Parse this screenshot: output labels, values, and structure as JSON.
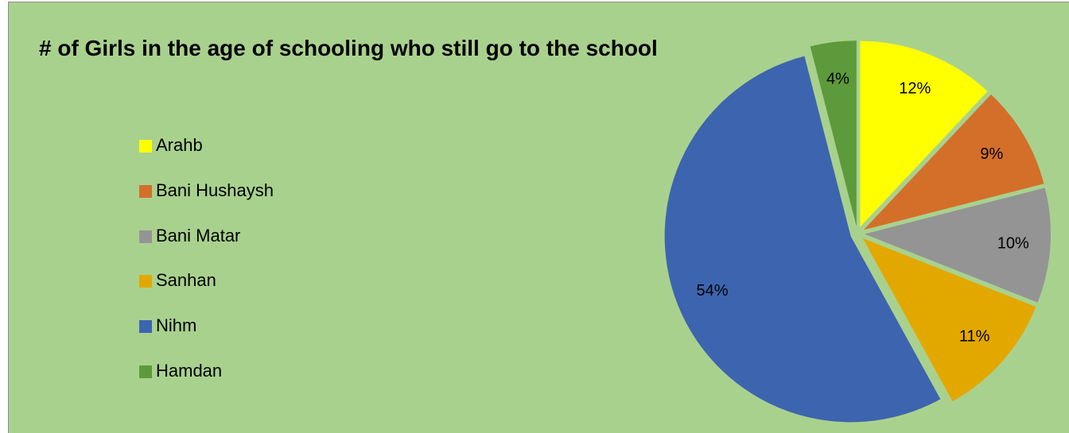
{
  "chart_data": {
    "type": "pie",
    "title": "# of Girls in the age of schooling who still go to the school",
    "legend_position": "left",
    "background": "#a9d18e",
    "slices": [
      {
        "name": "Arahb",
        "value": 12,
        "label": "12%",
        "color": "#ffff00"
      },
      {
        "name": "Bani Hushaysh",
        "value": 9,
        "label": "9%",
        "color": "#d46f2a"
      },
      {
        "name": "Bani Matar",
        "value": 10,
        "label": "10%",
        "color": "#949494"
      },
      {
        "name": "Sanhan",
        "value": 11,
        "label": "11%",
        "color": "#e3a800"
      },
      {
        "name": "Nihm",
        "value": 54,
        "label": "54%",
        "color": "#3d64ae"
      },
      {
        "name": "Hamdan",
        "value": 4,
        "label": "4%",
        "color": "#5d9a3b"
      }
    ]
  }
}
